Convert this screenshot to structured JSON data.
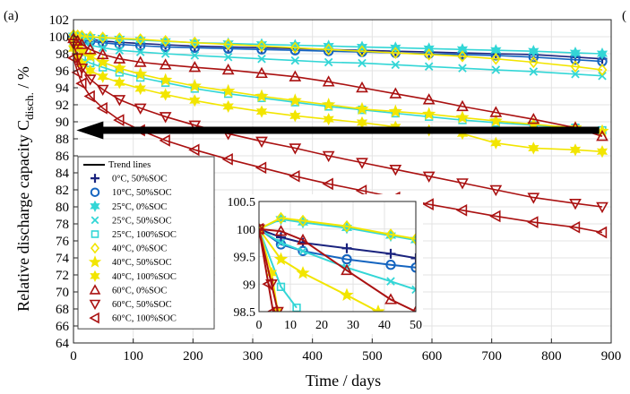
{
  "panel_label": "(a)",
  "panel_label_right": "(",
  "colors": {
    "c0": "#1a237e",
    "c10": "#1565c0",
    "c25": "#33d6d6",
    "c40": "#f2e500",
    "c60": "#aa1111",
    "arrow": "#000000"
  },
  "chart_data": {
    "type": "line",
    "title": "",
    "xlabel": "Time / days",
    "ylabel_main": "Relative discharge capacity C",
    "ylabel_sub": "disch.",
    "ylabel_unit": " / %",
    "xlim": [
      0,
      900
    ],
    "ylim": [
      64,
      102
    ],
    "xticks": [
      0,
      100,
      200,
      300,
      400,
      500,
      600,
      700,
      800,
      900
    ],
    "yticks": [
      64,
      66,
      68,
      70,
      72,
      74,
      76,
      78,
      80,
      82,
      84,
      86,
      88,
      90,
      92,
      94,
      96,
      98,
      100,
      102
    ],
    "grid": true,
    "legend_position": "left",
    "legend_title": "Trend lines",
    "arrow": {
      "from": [
        880,
        89
      ],
      "to": [
        5,
        89
      ]
    },
    "series": [
      {
        "name": "0°C, 50%SOC",
        "color": "#1a237e",
        "marker": "plus",
        "x": [
          0,
          7,
          14,
          28,
          49,
          77,
          112,
          154,
          203,
          259,
          315,
          371,
          427,
          483,
          539,
          595,
          651,
          707,
          770,
          840,
          885
        ],
        "y": [
          100,
          99.95,
          99.85,
          99.7,
          99.5,
          99.35,
          99.2,
          99.05,
          98.9,
          98.8,
          98.7,
          98.6,
          98.5,
          98.4,
          98.3,
          98.2,
          98.1,
          98.0,
          97.9,
          97.6,
          97.4
        ]
      },
      {
        "name": "10°C, 50%SOC",
        "color": "#1565c0",
        "marker": "circle",
        "x": [
          0,
          7,
          14,
          28,
          49,
          77,
          112,
          154,
          203,
          259,
          315,
          371,
          427,
          483,
          539,
          595,
          651,
          707,
          770,
          840,
          885
        ],
        "y": [
          100,
          99.8,
          99.65,
          99.45,
          99.3,
          99.1,
          98.95,
          98.8,
          98.7,
          98.6,
          98.5,
          98.4,
          98.3,
          98.2,
          98.1,
          98.0,
          97.9,
          97.8,
          97.6,
          97.3,
          97.1
        ]
      },
      {
        "name": "25°C, 0%SOC",
        "color": "#33d6d6",
        "marker": "star6",
        "x": [
          0,
          7,
          14,
          28,
          49,
          77,
          112,
          154,
          203,
          259,
          315,
          371,
          427,
          483,
          539,
          595,
          651,
          707,
          770,
          840,
          885
        ],
        "y": [
          100.1,
          100.05,
          100,
          99.95,
          99.85,
          99.75,
          99.6,
          99.45,
          99.3,
          99.2,
          99.1,
          99.0,
          98.9,
          98.8,
          98.7,
          98.6,
          98.5,
          98.4,
          98.3,
          98.1,
          98.0
        ]
      },
      {
        "name": "25°C, 50%SOC",
        "color": "#33d6d6",
        "marker": "cross",
        "x": [
          0,
          7,
          14,
          28,
          49,
          77,
          112,
          154,
          203,
          259,
          315,
          371,
          427,
          483,
          539,
          595,
          651,
          707,
          770,
          840,
          885
        ],
        "y": [
          100,
          99.6,
          99.3,
          99.0,
          98.7,
          98.4,
          98.2,
          98.0,
          97.8,
          97.6,
          97.4,
          97.2,
          97.0,
          96.9,
          96.7,
          96.5,
          96.3,
          96.1,
          95.9,
          95.6,
          95.4
        ]
      },
      {
        "name": "25°C, 100%SOC",
        "color": "#33d6d6",
        "marker": "square",
        "x": [
          0,
          7,
          14,
          28,
          49,
          77,
          112,
          154,
          203,
          259,
          315,
          371,
          427,
          483,
          539,
          595,
          651,
          707,
          770,
          840,
          885
        ],
        "y": [
          99.1,
          98.0,
          97.4,
          96.9,
          96.4,
          95.8,
          95.2,
          94.6,
          93.9,
          93.3,
          92.8,
          92.3,
          91.8,
          91.4,
          91.0,
          90.6,
          90.2,
          89.9,
          89.6,
          89.3,
          89.0
        ]
      },
      {
        "name": "40°C, 0%SOC",
        "color": "#f2e500",
        "marker": "diamond",
        "x": [
          0,
          7,
          14,
          28,
          49,
          77,
          112,
          154,
          203,
          259,
          315,
          371,
          427,
          483,
          539,
          595,
          651,
          707,
          770,
          840,
          885
        ],
        "y": [
          100.2,
          100.15,
          100.1,
          100.0,
          99.9,
          99.8,
          99.7,
          99.5,
          99.3,
          99.1,
          98.9,
          98.7,
          98.5,
          98.3,
          98.1,
          97.9,
          97.7,
          97.4,
          97.0,
          96.5,
          96.1
        ]
      },
      {
        "name": "40°C, 50%SOC",
        "color": "#f2e500",
        "marker": "star",
        "x": [
          0,
          7,
          14,
          28,
          49,
          77,
          112,
          154,
          203,
          259,
          315,
          371,
          427,
          483,
          539,
          595,
          651,
          707,
          770,
          840,
          885
        ],
        "y": [
          99.6,
          98.8,
          98.3,
          97.7,
          97.0,
          96.3,
          95.6,
          94.9,
          94.2,
          93.6,
          93.0,
          92.5,
          92.0,
          91.5,
          91.2,
          90.9,
          90.5,
          90.1,
          89.7,
          89.3,
          88.9
        ]
      },
      {
        "name": "40°C, 100%SOC",
        "color": "#f2e500",
        "marker": "star6",
        "x": [
          0,
          7,
          14,
          28,
          49,
          77,
          112,
          154,
          203,
          259,
          315,
          371,
          427,
          483,
          539,
          595,
          651,
          707,
          770,
          840,
          885
        ],
        "y": [
          98.6,
          97.5,
          96.8,
          96.0,
          95.3,
          94.6,
          93.9,
          93.2,
          92.5,
          91.8,
          91.2,
          90.7,
          90.3,
          89.9,
          89.4,
          89.0,
          88.6,
          87.5,
          86.9,
          86.7,
          86.5
        ]
      },
      {
        "name": "60°C, 0%SOC",
        "color": "#aa1111",
        "marker": "triangle-up",
        "x": [
          0,
          7,
          14,
          28,
          49,
          77,
          112,
          154,
          203,
          259,
          315,
          371,
          427,
          483,
          539,
          595,
          651,
          707,
          770,
          840,
          885
        ],
        "y": [
          99.8,
          99.5,
          99.1,
          98.5,
          97.9,
          97.4,
          97.0,
          96.7,
          96.4,
          96.1,
          95.7,
          95.3,
          94.7,
          94.0,
          93.3,
          92.6,
          91.8,
          91.1,
          90.3,
          89.3,
          88.3
        ]
      },
      {
        "name": "60°C, 50%SOC",
        "color": "#aa1111",
        "marker": "triangle-down",
        "x": [
          0,
          7,
          14,
          28,
          49,
          77,
          112,
          154,
          203,
          259,
          315,
          371,
          427,
          483,
          539,
          595,
          651,
          707,
          770,
          840,
          885
        ],
        "y": [
          99.2,
          97.5,
          96.3,
          95.0,
          93.8,
          92.6,
          91.6,
          90.6,
          89.6,
          88.6,
          87.7,
          86.9,
          86.0,
          85.2,
          84.4,
          83.6,
          82.8,
          82.0,
          81.1,
          80.4,
          80.0
        ]
      },
      {
        "name": "60°C, 100%SOC",
        "color": "#aa1111",
        "marker": "triangle-left",
        "x": [
          0,
          7,
          14,
          28,
          49,
          77,
          112,
          154,
          203,
          259,
          315,
          371,
          427,
          483,
          539,
          595,
          651,
          707,
          770,
          840,
          885
        ],
        "y": [
          97.5,
          95.8,
          94.5,
          93.0,
          91.6,
          90.2,
          89.0,
          87.8,
          86.7,
          85.6,
          84.6,
          83.6,
          82.7,
          81.9,
          81.1,
          80.3,
          79.6,
          78.9,
          78.2,
          77.6,
          77.0
        ]
      }
    ],
    "inset": {
      "xlim": [
        0,
        50
      ],
      "ylim": [
        98.5,
        100.5
      ],
      "xticks": [
        0,
        10,
        20,
        30,
        40,
        50
      ],
      "yticks": [
        98.5,
        99,
        99.5,
        100,
        100.5
      ],
      "series": [
        {
          "ref": 0,
          "x": [
            0,
            7,
            14,
            28,
            42,
            50
          ],
          "y": [
            100,
            99.85,
            99.75,
            99.65,
            99.55,
            99.47
          ]
        },
        {
          "ref": 1,
          "x": [
            0,
            7,
            14,
            28,
            42,
            50
          ],
          "y": [
            100,
            99.72,
            99.6,
            99.45,
            99.35,
            99.3
          ]
        },
        {
          "ref": 2,
          "x": [
            0,
            7,
            14,
            28,
            42,
            50
          ],
          "y": [
            100,
            100.18,
            100.12,
            100.02,
            99.88,
            99.8
          ]
        },
        {
          "ref": 3,
          "x": [
            0,
            7,
            14,
            28,
            42,
            50
          ],
          "y": [
            100,
            99.75,
            99.6,
            99.3,
            99.05,
            98.9
          ]
        },
        {
          "ref": 4,
          "x": [
            0,
            7,
            12
          ],
          "y": [
            100,
            98.95,
            98.57
          ]
        },
        {
          "ref": 5,
          "x": [
            0,
            7,
            14,
            28,
            42,
            50
          ],
          "y": [
            100,
            100.2,
            100.15,
            100.05,
            99.9,
            99.82
          ]
        },
        {
          "ref": 6,
          "x": [
            0,
            7,
            14,
            28,
            38
          ],
          "y": [
            100,
            99.45,
            99.2,
            98.8,
            98.5
          ]
        },
        {
          "ref": 7,
          "x": [
            0,
            4,
            6
          ],
          "y": [
            100,
            99.2,
            98.5
          ]
        },
        {
          "ref": 8,
          "x": [
            0,
            7,
            14,
            28,
            42,
            50
          ],
          "y": [
            100,
            99.96,
            99.8,
            99.25,
            98.72,
            98.5
          ]
        },
        {
          "ref": 9,
          "x": [
            0,
            4,
            6
          ],
          "y": [
            100,
            99.0,
            98.5
          ]
        },
        {
          "ref": 10,
          "x": [
            0,
            3,
            4.5
          ],
          "y": [
            100,
            99.0,
            98.5
          ]
        }
      ]
    }
  }
}
